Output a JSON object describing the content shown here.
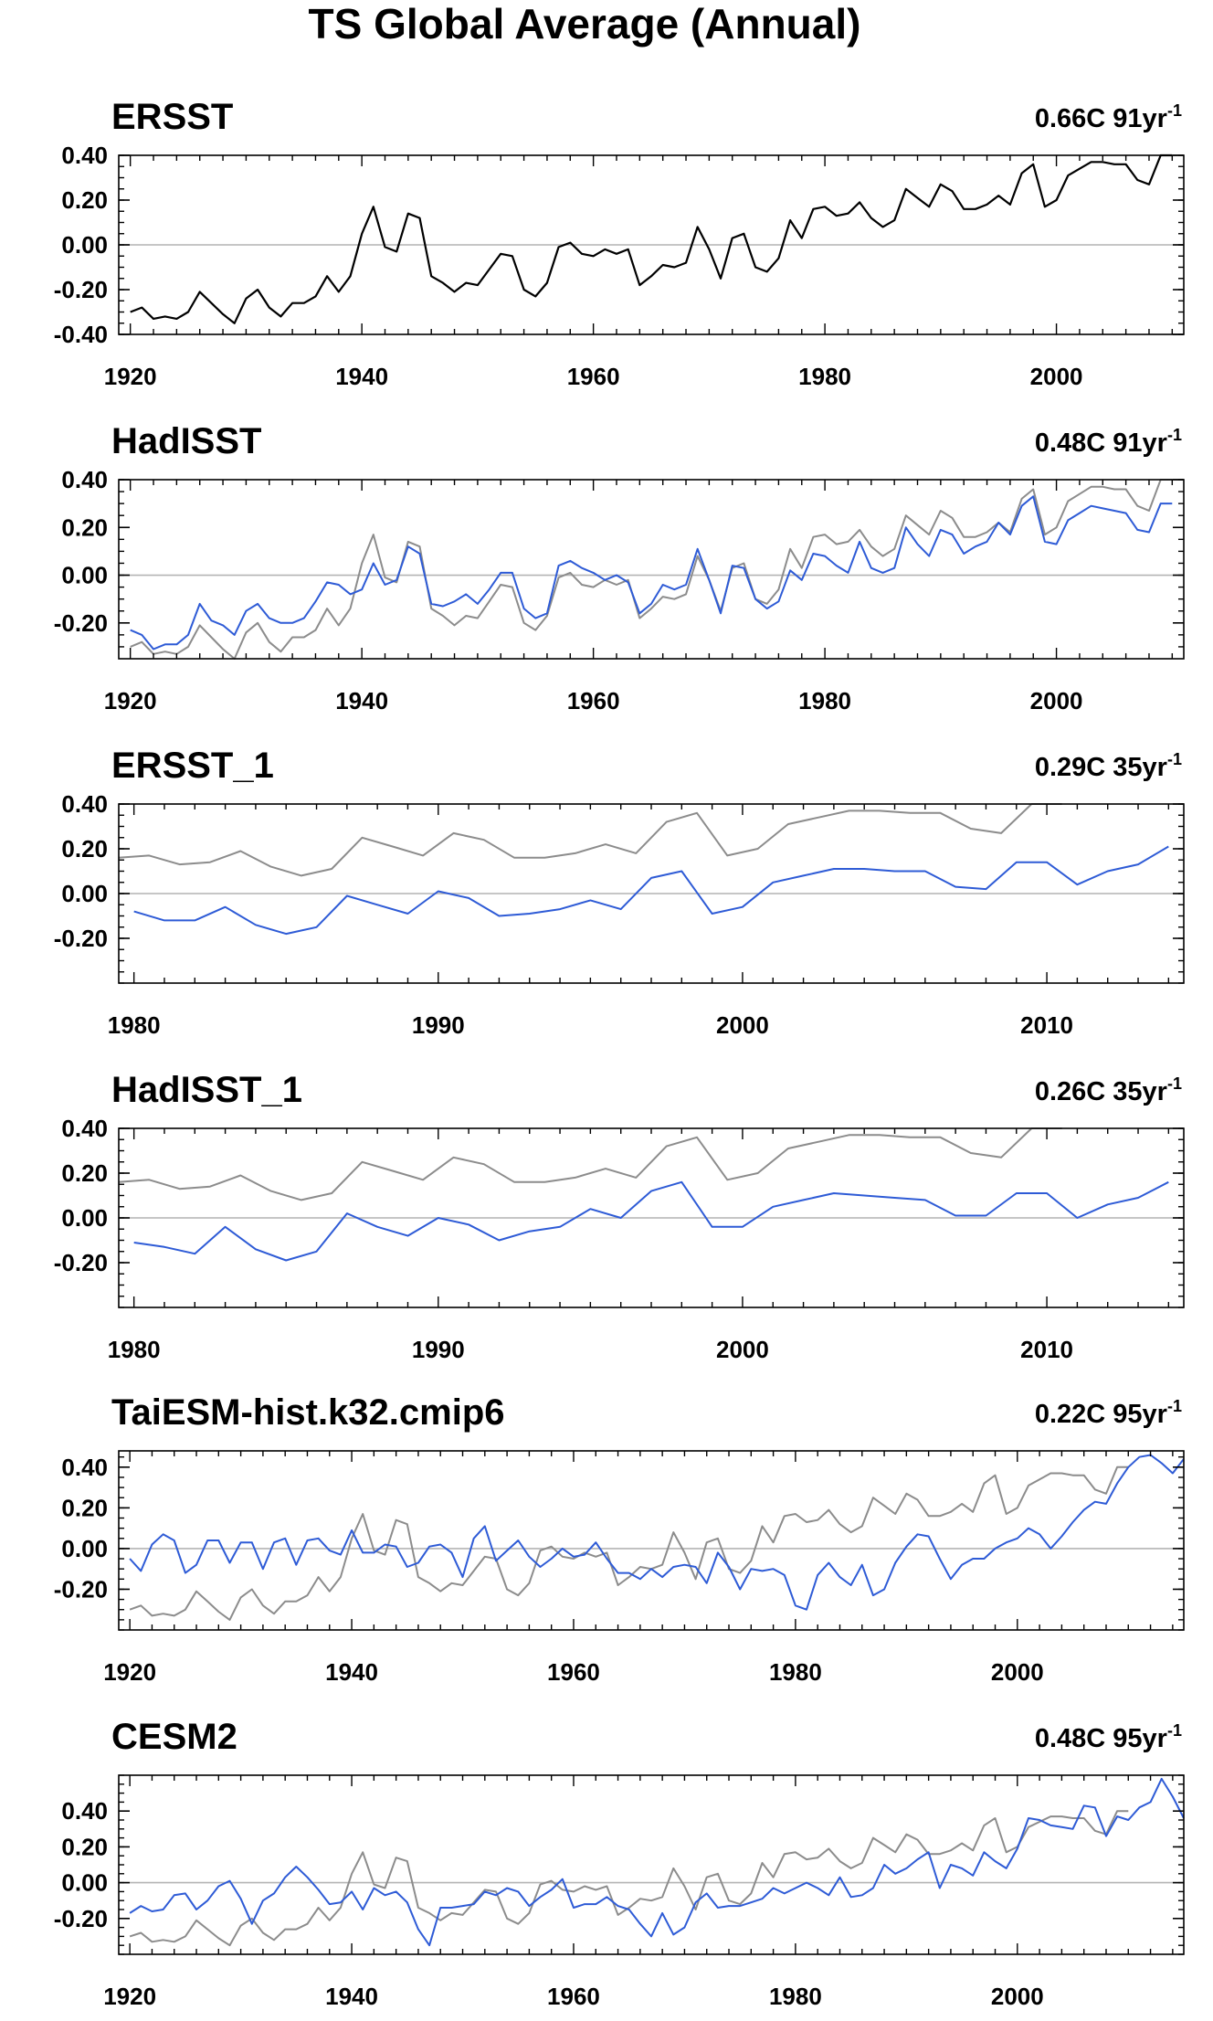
{
  "title": "TS Global Average (Annual)",
  "colors": {
    "obs": "#000000",
    "ref": "#8c8c8c",
    "model": "#2e5bd6",
    "zero_line": "#b4b4b4"
  },
  "chart_data": [
    {
      "type": "line",
      "title": "ERSST",
      "trend_text": "0.66C 91yr",
      "trend_sup": "-1",
      "xlim": [
        1919,
        2011
      ],
      "ylim": [
        -0.4,
        0.4
      ],
      "xticks": [
        1920,
        1940,
        1960,
        1980,
        2000
      ],
      "yticks": [
        0.4,
        0.2,
        0.0,
        -0.2,
        -0.4
      ],
      "ytick_labels": [
        "0.40",
        "0.20",
        "0.00",
        "-0.20",
        "-0.40"
      ],
      "series": [
        {
          "role": "obs",
          "x0": 1920,
          "values": [
            -0.3,
            -0.28,
            -0.33,
            -0.32,
            -0.33,
            -0.3,
            -0.21,
            -0.26,
            -0.31,
            -0.35,
            -0.24,
            -0.2,
            -0.28,
            -0.32,
            -0.26,
            -0.26,
            -0.23,
            -0.14,
            -0.21,
            -0.14,
            0.05,
            0.17,
            -0.01,
            -0.03,
            0.14,
            0.12,
            -0.14,
            -0.17,
            -0.21,
            -0.17,
            -0.18,
            -0.11,
            -0.04,
            -0.05,
            -0.2,
            -0.23,
            -0.17,
            -0.01,
            0.01,
            -0.04,
            -0.05,
            -0.02,
            -0.04,
            -0.02,
            -0.18,
            -0.14,
            -0.09,
            -0.1,
            -0.08,
            0.08,
            -0.02,
            -0.15,
            0.03,
            0.05,
            -0.1,
            -0.12,
            -0.06,
            0.11,
            0.03,
            0.16,
            0.17,
            0.13,
            0.14,
            0.19,
            0.12,
            0.08,
            0.11,
            0.25,
            0.21,
            0.17,
            0.27,
            0.24,
            0.16,
            0.16,
            0.18,
            0.22,
            0.18,
            0.32,
            0.36,
            0.17,
            0.2,
            0.31,
            0.34,
            0.37,
            0.37,
            0.36,
            0.36,
            0.29,
            0.27,
            0.4,
            0.4
          ]
        }
      ]
    },
    {
      "type": "line",
      "title": "HadISST",
      "trend_text": "0.48C 91yr",
      "trend_sup": "-1",
      "xlim": [
        1919,
        2011
      ],
      "ylim": [
        -0.35,
        0.4
      ],
      "xticks": [
        1920,
        1940,
        1960,
        1980,
        2000
      ],
      "yticks": [
        0.4,
        0.2,
        0.0,
        -0.2
      ],
      "ytick_labels": [
        "0.40",
        "0.20",
        "0.00",
        "-0.20"
      ],
      "series": [
        {
          "role": "ref",
          "x0": 1920,
          "values": [
            -0.3,
            -0.28,
            -0.33,
            -0.32,
            -0.33,
            -0.3,
            -0.21,
            -0.26,
            -0.31,
            -0.35,
            -0.24,
            -0.2,
            -0.28,
            -0.32,
            -0.26,
            -0.26,
            -0.23,
            -0.14,
            -0.21,
            -0.14,
            0.05,
            0.17,
            -0.01,
            -0.03,
            0.14,
            0.12,
            -0.14,
            -0.17,
            -0.21,
            -0.17,
            -0.18,
            -0.11,
            -0.04,
            -0.05,
            -0.2,
            -0.23,
            -0.17,
            -0.01,
            0.01,
            -0.04,
            -0.05,
            -0.02,
            -0.04,
            -0.02,
            -0.18,
            -0.14,
            -0.09,
            -0.1,
            -0.08,
            0.08,
            -0.02,
            -0.15,
            0.03,
            0.05,
            -0.1,
            -0.12,
            -0.06,
            0.11,
            0.03,
            0.16,
            0.17,
            0.13,
            0.14,
            0.19,
            0.12,
            0.08,
            0.11,
            0.25,
            0.21,
            0.17,
            0.27,
            0.24,
            0.16,
            0.16,
            0.18,
            0.22,
            0.18,
            0.32,
            0.36,
            0.17,
            0.2,
            0.31,
            0.34,
            0.37,
            0.37,
            0.36,
            0.36,
            0.29,
            0.27,
            0.4,
            0.4
          ]
        },
        {
          "role": "model",
          "x0": 1920,
          "values": [
            -0.23,
            -0.25,
            -0.31,
            -0.29,
            -0.29,
            -0.25,
            -0.12,
            -0.19,
            -0.21,
            -0.25,
            -0.15,
            -0.12,
            -0.18,
            -0.2,
            -0.2,
            -0.18,
            -0.11,
            -0.03,
            -0.04,
            -0.08,
            -0.06,
            0.05,
            -0.04,
            -0.02,
            0.12,
            0.09,
            -0.12,
            -0.13,
            -0.11,
            -0.08,
            -0.12,
            -0.06,
            0.01,
            0.01,
            -0.14,
            -0.18,
            -0.16,
            0.04,
            0.06,
            0.03,
            0.01,
            -0.02,
            0.0,
            -0.03,
            -0.16,
            -0.12,
            -0.04,
            -0.06,
            -0.04,
            0.11,
            -0.02,
            -0.16,
            0.04,
            0.03,
            -0.1,
            -0.14,
            -0.11,
            0.02,
            -0.02,
            0.09,
            0.08,
            0.04,
            0.01,
            0.14,
            0.03,
            0.01,
            0.03,
            0.2,
            0.13,
            0.08,
            0.19,
            0.17,
            0.09,
            0.12,
            0.14,
            0.22,
            0.17,
            0.29,
            0.33,
            0.14,
            0.13,
            0.23,
            0.26,
            0.29,
            0.28,
            0.27,
            0.26,
            0.19,
            0.18,
            0.3,
            0.3
          ]
        }
      ]
    },
    {
      "type": "line",
      "title": "ERSST_1",
      "trend_text": "0.29C 35yr",
      "trend_sup": "-1",
      "xlim": [
        1979.5,
        2014.5
      ],
      "ylim": [
        -0.4,
        0.4
      ],
      "xticks": [
        1980,
        1990,
        2000,
        2010
      ],
      "yticks": [
        0.4,
        0.2,
        0.0,
        -0.2
      ],
      "ytick_labels": [
        "0.40",
        "0.20",
        "0.00",
        "-0.20"
      ],
      "series": [
        {
          "role": "ref",
          "x0": 1979.5,
          "values": [
            0.16,
            0.17,
            0.13,
            0.14,
            0.19,
            0.12,
            0.08,
            0.11,
            0.25,
            0.21,
            0.17,
            0.27,
            0.24,
            0.16,
            0.16,
            0.18,
            0.22,
            0.18,
            0.32,
            0.36,
            0.17,
            0.2,
            0.31,
            0.34,
            0.37,
            0.37,
            0.36,
            0.36,
            0.29,
            0.27,
            0.4,
            0.4
          ]
        },
        {
          "role": "model",
          "x0": 1980,
          "values": [
            -0.08,
            -0.12,
            -0.12,
            -0.06,
            -0.14,
            -0.18,
            -0.15,
            -0.01,
            -0.05,
            -0.09,
            0.01,
            -0.02,
            -0.1,
            -0.09,
            -0.07,
            -0.03,
            -0.07,
            0.07,
            0.1,
            -0.09,
            -0.06,
            0.05,
            0.08,
            0.11,
            0.11,
            0.1,
            0.1,
            0.03,
            0.02,
            0.14,
            0.14,
            0.04,
            0.1,
            0.13,
            0.21
          ]
        }
      ]
    },
    {
      "type": "line",
      "title": "HadISST_1",
      "trend_text": "0.26C 35yr",
      "trend_sup": "-1",
      "xlim": [
        1979.5,
        2014.5
      ],
      "ylim": [
        -0.4,
        0.4
      ],
      "xticks": [
        1980,
        1990,
        2000,
        2010
      ],
      "yticks": [
        0.4,
        0.2,
        0.0,
        -0.2
      ],
      "ytick_labels": [
        "0.40",
        "0.20",
        "0.00",
        "-0.20"
      ],
      "series": [
        {
          "role": "ref",
          "x0": 1979.5,
          "values": [
            0.16,
            0.17,
            0.13,
            0.14,
            0.19,
            0.12,
            0.08,
            0.11,
            0.25,
            0.21,
            0.17,
            0.27,
            0.24,
            0.16,
            0.16,
            0.18,
            0.22,
            0.18,
            0.32,
            0.36,
            0.17,
            0.2,
            0.31,
            0.34,
            0.37,
            0.37,
            0.36,
            0.36,
            0.29,
            0.27,
            0.4,
            0.4
          ]
        },
        {
          "role": "model",
          "x0": 1980,
          "values": [
            -0.11,
            -0.13,
            -0.16,
            -0.04,
            -0.14,
            -0.19,
            -0.15,
            0.02,
            -0.04,
            -0.08,
            0.0,
            -0.03,
            -0.1,
            -0.06,
            -0.04,
            0.04,
            0.0,
            0.12,
            0.16,
            -0.04,
            -0.04,
            0.05,
            0.08,
            0.11,
            0.1,
            0.09,
            0.08,
            0.01,
            0.01,
            0.11,
            0.11,
            0.0,
            0.06,
            0.09,
            0.16
          ]
        }
      ]
    },
    {
      "type": "line",
      "title": "TaiESM-hist.k32.cmip6",
      "trend_text": "0.22C 95yr",
      "trend_sup": "-1",
      "xlim": [
        1919,
        2015
      ],
      "ylim": [
        -0.4,
        0.48
      ],
      "xticks": [
        1920,
        1940,
        1960,
        1980,
        2000
      ],
      "yticks": [
        0.4,
        0.2,
        0.0,
        -0.2
      ],
      "ytick_labels": [
        "0.40",
        "0.20",
        "0.00",
        "-0.20"
      ],
      "series": [
        {
          "role": "ref",
          "x0": 1920,
          "values": [
            -0.3,
            -0.28,
            -0.33,
            -0.32,
            -0.33,
            -0.3,
            -0.21,
            -0.26,
            -0.31,
            -0.35,
            -0.24,
            -0.2,
            -0.28,
            -0.32,
            -0.26,
            -0.26,
            -0.23,
            -0.14,
            -0.21,
            -0.14,
            0.05,
            0.17,
            -0.01,
            -0.03,
            0.14,
            0.12,
            -0.14,
            -0.17,
            -0.21,
            -0.17,
            -0.18,
            -0.11,
            -0.04,
            -0.05,
            -0.2,
            -0.23,
            -0.17,
            -0.01,
            0.01,
            -0.04,
            -0.05,
            -0.02,
            -0.04,
            -0.02,
            -0.18,
            -0.14,
            -0.09,
            -0.1,
            -0.08,
            0.08,
            -0.02,
            -0.15,
            0.03,
            0.05,
            -0.1,
            -0.12,
            -0.06,
            0.11,
            0.03,
            0.16,
            0.17,
            0.13,
            0.14,
            0.19,
            0.12,
            0.08,
            0.11,
            0.25,
            0.21,
            0.17,
            0.27,
            0.24,
            0.16,
            0.16,
            0.18,
            0.22,
            0.18,
            0.32,
            0.36,
            0.17,
            0.2,
            0.31,
            0.34,
            0.37,
            0.37,
            0.36,
            0.36,
            0.29,
            0.27,
            0.4,
            0.4
          ]
        },
        {
          "role": "model",
          "x0": 1920,
          "values": [
            -0.05,
            -0.11,
            0.02,
            0.07,
            0.04,
            -0.12,
            -0.08,
            0.04,
            0.04,
            -0.07,
            0.03,
            0.03,
            -0.1,
            0.03,
            0.05,
            -0.08,
            0.04,
            0.05,
            -0.01,
            -0.03,
            0.09,
            -0.02,
            -0.02,
            0.02,
            0.01,
            -0.09,
            -0.07,
            0.01,
            0.02,
            -0.02,
            -0.14,
            0.05,
            0.11,
            -0.06,
            -0.01,
            0.04,
            -0.04,
            -0.09,
            -0.05,
            0.0,
            -0.04,
            -0.03,
            0.03,
            -0.05,
            -0.12,
            -0.12,
            -0.15,
            -0.1,
            -0.14,
            -0.09,
            -0.08,
            -0.09,
            -0.17,
            -0.02,
            -0.09,
            -0.2,
            -0.1,
            -0.11,
            -0.1,
            -0.13,
            -0.28,
            -0.3,
            -0.13,
            -0.07,
            -0.14,
            -0.18,
            -0.08,
            -0.23,
            -0.2,
            -0.07,
            0.01,
            0.07,
            0.06,
            -0.05,
            -0.15,
            -0.08,
            -0.05,
            -0.05,
            0.0,
            0.03,
            0.05,
            0.1,
            0.07,
            0.0,
            0.06,
            0.13,
            0.19,
            0.23,
            0.22,
            0.32,
            0.4,
            0.45,
            0.46,
            0.42,
            0.37,
            0.44
          ]
        }
      ]
    },
    {
      "type": "line",
      "title": "CESM2",
      "trend_text": "0.48C 95yr",
      "trend_sup": "-1",
      "xlim": [
        1919,
        2015
      ],
      "ylim": [
        -0.4,
        0.6
      ],
      "xticks": [
        1920,
        1940,
        1960,
        1980,
        2000
      ],
      "yticks": [
        0.4,
        0.2,
        0.0,
        -0.2
      ],
      "ytick_labels": [
        "0.40",
        "0.20",
        "0.00",
        "-0.20"
      ],
      "series": [
        {
          "role": "ref",
          "x0": 1920,
          "values": [
            -0.3,
            -0.28,
            -0.33,
            -0.32,
            -0.33,
            -0.3,
            -0.21,
            -0.26,
            -0.31,
            -0.35,
            -0.24,
            -0.2,
            -0.28,
            -0.32,
            -0.26,
            -0.26,
            -0.23,
            -0.14,
            -0.21,
            -0.14,
            0.05,
            0.17,
            -0.01,
            -0.03,
            0.14,
            0.12,
            -0.14,
            -0.17,
            -0.21,
            -0.17,
            -0.18,
            -0.11,
            -0.04,
            -0.05,
            -0.2,
            -0.23,
            -0.17,
            -0.01,
            0.01,
            -0.04,
            -0.05,
            -0.02,
            -0.04,
            -0.02,
            -0.18,
            -0.14,
            -0.09,
            -0.1,
            -0.08,
            0.08,
            -0.02,
            -0.15,
            0.03,
            0.05,
            -0.1,
            -0.12,
            -0.06,
            0.11,
            0.03,
            0.16,
            0.17,
            0.13,
            0.14,
            0.19,
            0.12,
            0.08,
            0.11,
            0.25,
            0.21,
            0.17,
            0.27,
            0.24,
            0.16,
            0.16,
            0.18,
            0.22,
            0.18,
            0.32,
            0.36,
            0.17,
            0.2,
            0.31,
            0.34,
            0.37,
            0.37,
            0.36,
            0.36,
            0.29,
            0.27,
            0.4,
            0.4
          ]
        },
        {
          "role": "model",
          "x0": 1920,
          "values": [
            -0.17,
            -0.13,
            -0.16,
            -0.15,
            -0.07,
            -0.06,
            -0.15,
            -0.1,
            -0.02,
            0.01,
            -0.09,
            -0.23,
            -0.1,
            -0.06,
            0.03,
            0.09,
            0.03,
            -0.04,
            -0.12,
            -0.11,
            -0.05,
            -0.15,
            -0.03,
            -0.07,
            -0.05,
            -0.11,
            -0.26,
            -0.35,
            -0.14,
            -0.14,
            -0.13,
            -0.12,
            -0.05,
            -0.07,
            -0.03,
            -0.05,
            -0.13,
            -0.08,
            -0.04,
            0.02,
            -0.14,
            -0.12,
            -0.12,
            -0.08,
            -0.13,
            -0.15,
            -0.23,
            -0.3,
            -0.17,
            -0.29,
            -0.25,
            -0.11,
            -0.06,
            -0.14,
            -0.13,
            -0.13,
            -0.11,
            -0.09,
            -0.03,
            -0.06,
            -0.03,
            0.0,
            -0.03,
            -0.07,
            0.03,
            -0.08,
            -0.07,
            -0.03,
            0.1,
            0.05,
            0.08,
            0.13,
            0.17,
            -0.03,
            0.1,
            0.08,
            0.04,
            0.17,
            0.12,
            0.08,
            0.19,
            0.36,
            0.35,
            0.32,
            0.31,
            0.3,
            0.43,
            0.42,
            0.26,
            0.37,
            0.35,
            0.42,
            0.45,
            0.58,
            0.48,
            0.36
          ]
        }
      ]
    }
  ]
}
